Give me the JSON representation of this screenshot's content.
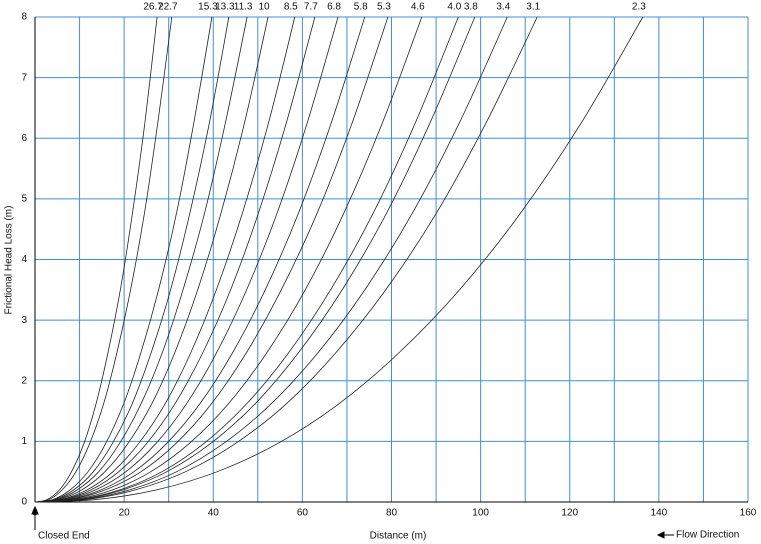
{
  "chart_data": {
    "type": "line",
    "x_label": "Distance (m)",
    "y_label": "Frictional Head Loss (m)",
    "annotations": {
      "left": "Closed End",
      "right": "Flow Direction"
    },
    "xlim": [
      0,
      160
    ],
    "ylim": [
      0,
      8
    ],
    "xticks": [
      0,
      20,
      40,
      60,
      80,
      100,
      120,
      140,
      160
    ],
    "x_grid": [
      10,
      30,
      50,
      70,
      90,
      110,
      130,
      150
    ],
    "yticks": [
      0,
      1,
      2,
      3,
      4,
      5,
      6,
      7,
      8
    ],
    "grid": true,
    "grid_color": "#3f8fd6",
    "line_color": "#222222",
    "series": [
      {
        "name": "26.7",
        "x": [
          0,
          2.7,
          5.5,
          8.2,
          11.0,
          13.7,
          16.4,
          19.2,
          21.9,
          24.7,
          27.4
        ],
        "values": [
          0,
          0.04,
          0.2,
          0.5,
          0.97,
          1.62,
          2.47,
          3.52,
          4.78,
          6.28,
          8
        ]
      },
      {
        "name": "22.7",
        "x": [
          0,
          3.1,
          6.1,
          9.2,
          12.3,
          15.4,
          18.4,
          21.5,
          24.6,
          27.6,
          30.7
        ],
        "values": [
          0,
          0.04,
          0.2,
          0.5,
          0.97,
          1.62,
          2.47,
          3.52,
          4.78,
          6.28,
          8
        ]
      },
      {
        "name": "15.3",
        "x": [
          0,
          4.0,
          7.9,
          11.9,
          15.9,
          19.9,
          23.8,
          27.8,
          31.8,
          35.7,
          39.7
        ],
        "values": [
          0,
          0.04,
          0.2,
          0.5,
          0.97,
          1.62,
          2.47,
          3.52,
          4.78,
          6.28,
          8
        ]
      },
      {
        "name": "13.3",
        "x": [
          0,
          4.4,
          8.7,
          13.1,
          17.4,
          21.8,
          26.1,
          30.5,
          34.8,
          39.2,
          43.5
        ],
        "values": [
          0,
          0.04,
          0.2,
          0.5,
          0.97,
          1.62,
          2.47,
          3.52,
          4.78,
          6.28,
          8
        ]
      },
      {
        "name": "11.3",
        "x": [
          0,
          4.8,
          9.5,
          14.3,
          19.0,
          23.8,
          28.6,
          33.3,
          38.1,
          42.8,
          47.6
        ],
        "values": [
          0,
          0.04,
          0.2,
          0.5,
          0.97,
          1.62,
          2.47,
          3.52,
          4.78,
          6.28,
          8
        ]
      },
      {
        "name": "10",
        "x": [
          0,
          5.2,
          10.5,
          15.7,
          20.9,
          26.2,
          31.4,
          36.6,
          41.8,
          47.1,
          52.3
        ],
        "values": [
          0,
          0.04,
          0.2,
          0.5,
          0.97,
          1.62,
          2.47,
          3.52,
          4.78,
          6.28,
          8
        ]
      },
      {
        "name": "8.5",
        "x": [
          0,
          5.8,
          11.7,
          17.5,
          23.3,
          29.2,
          35.0,
          40.8,
          46.6,
          52.5,
          58.3
        ],
        "values": [
          0,
          0.04,
          0.2,
          0.5,
          0.97,
          1.62,
          2.47,
          3.52,
          4.78,
          6.28,
          8
        ]
      },
      {
        "name": "7.7",
        "x": [
          0,
          6.3,
          12.6,
          18.8,
          25.1,
          31.4,
          37.7,
          44.0,
          50.2,
          56.5,
          62.8
        ],
        "values": [
          0,
          0.04,
          0.2,
          0.5,
          0.97,
          1.62,
          2.47,
          3.52,
          4.78,
          6.28,
          8
        ]
      },
      {
        "name": "6.8",
        "x": [
          0,
          6.8,
          13.6,
          20.4,
          27.2,
          34.0,
          40.8,
          47.6,
          54.4,
          61.2,
          68.0
        ],
        "values": [
          0,
          0.04,
          0.2,
          0.5,
          0.97,
          1.62,
          2.47,
          3.52,
          4.78,
          6.28,
          8
        ]
      },
      {
        "name": "5.8",
        "x": [
          0,
          7.4,
          14.8,
          22.2,
          29.6,
          37.0,
          44.4,
          51.8,
          59.2,
          66.6,
          74.0
        ],
        "values": [
          0,
          0.04,
          0.2,
          0.5,
          0.97,
          1.62,
          2.47,
          3.52,
          4.78,
          6.28,
          8
        ]
      },
      {
        "name": "5.3",
        "x": [
          0,
          7.9,
          15.8,
          23.8,
          31.7,
          39.6,
          47.5,
          55.4,
          63.4,
          71.3,
          79.2
        ],
        "values": [
          0,
          0.04,
          0.2,
          0.5,
          0.97,
          1.62,
          2.47,
          3.52,
          4.78,
          6.28,
          8
        ]
      },
      {
        "name": "4.6",
        "x": [
          0,
          8.7,
          17.4,
          26.0,
          34.7,
          43.4,
          52.1,
          60.8,
          69.4,
          78.1,
          86.8
        ],
        "values": [
          0,
          0.04,
          0.2,
          0.5,
          0.97,
          1.62,
          2.47,
          3.52,
          4.78,
          6.28,
          8
        ]
      },
      {
        "name": "4.0",
        "x": [
          0,
          9.5,
          19,
          28.5,
          38,
          47.5,
          57,
          66.5,
          76,
          85.5,
          95
        ],
        "values": [
          0,
          0.04,
          0.2,
          0.5,
          0.97,
          1.62,
          2.47,
          3.52,
          4.78,
          6.28,
          8
        ]
      },
      {
        "name": "3.8",
        "x": [
          0,
          9.9,
          19.7,
          29.6,
          39.5,
          49.4,
          59.2,
          69.1,
          79.0,
          88.8,
          98.7
        ],
        "values": [
          0,
          0.04,
          0.2,
          0.5,
          0.97,
          1.62,
          2.47,
          3.52,
          4.78,
          6.28,
          8
        ]
      },
      {
        "name": "3.4",
        "x": [
          0,
          10.6,
          21.2,
          31.8,
          42.4,
          53,
          63.6,
          74.2,
          84.8,
          95.4,
          106
        ],
        "values": [
          0,
          0.04,
          0.2,
          0.5,
          0.97,
          1.62,
          2.47,
          3.52,
          4.78,
          6.28,
          8
        ]
      },
      {
        "name": "3.1",
        "x": [
          0,
          11.3,
          22.5,
          33.8,
          45.1,
          56.4,
          67.6,
          78.9,
          90.2,
          101.4,
          112.7
        ],
        "values": [
          0,
          0.04,
          0.2,
          0.5,
          0.97,
          1.62,
          2.47,
          3.52,
          4.78,
          6.28,
          8
        ]
      },
      {
        "name": "2.3",
        "x": [
          0,
          13.6,
          27.3,
          40.9,
          54.6,
          68.2,
          81.8,
          95.5,
          109.1,
          122.8,
          136.4
        ],
        "values": [
          0,
          0.04,
          0.2,
          0.5,
          0.97,
          1.62,
          2.47,
          3.52,
          4.78,
          6.28,
          8
        ]
      }
    ]
  }
}
